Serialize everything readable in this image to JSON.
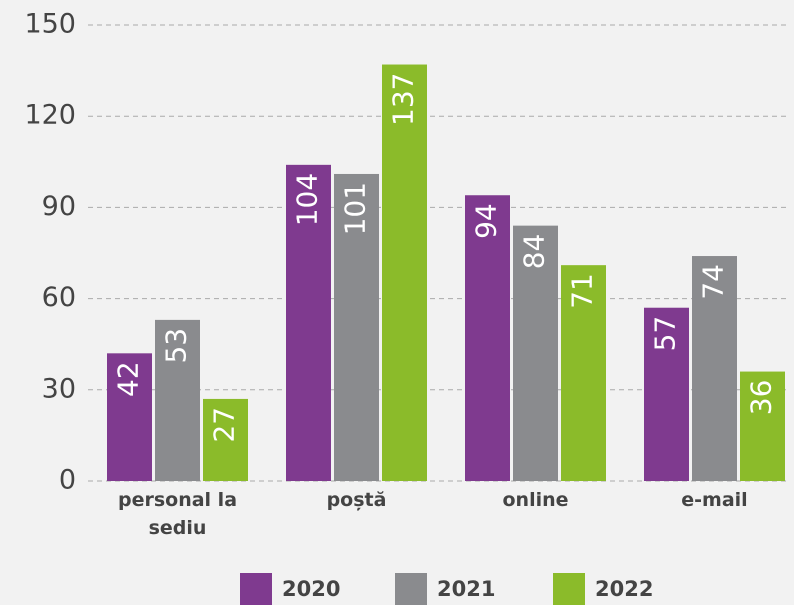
{
  "chart_data": {
    "type": "bar",
    "categories": [
      "personal la sediu",
      "poștă",
      "online",
      "e-mail"
    ],
    "series": [
      {
        "name": "2020",
        "color": "#7f3a8f",
        "values": [
          42,
          104,
          94,
          57
        ]
      },
      {
        "name": "2021",
        "color": "#8a8b8e",
        "values": [
          53,
          101,
          84,
          74
        ]
      },
      {
        "name": "2022",
        "color": "#8bbb2a",
        "values": [
          27,
          137,
          71,
          36
        ]
      }
    ],
    "ylim": [
      0,
      150
    ],
    "yticks": [
      0,
      30,
      60,
      90,
      120,
      150
    ],
    "grid": true,
    "legend": "bottom"
  }
}
